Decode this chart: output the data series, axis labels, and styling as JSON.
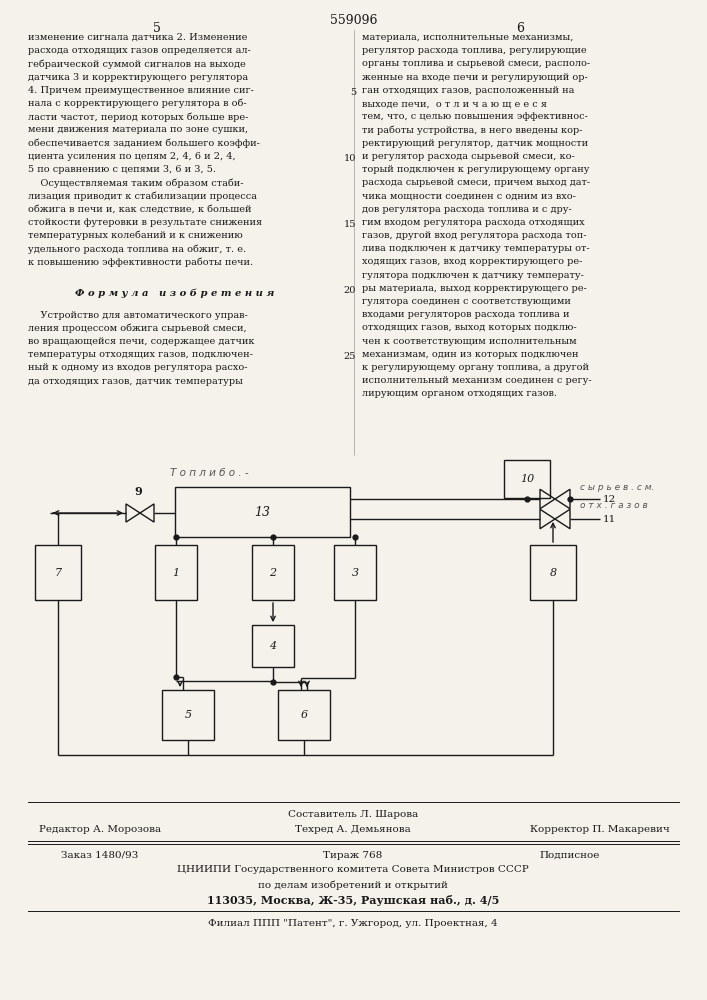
{
  "page_number": "559096",
  "col_left": "5",
  "col_right": "6",
  "bg_color": "#f5f2ec",
  "text_color": "#1a1a1a",
  "left_text": [
    "изменение сигнала датчика 2. Изменение",
    "расхода отходящих газов определяется ал-",
    "гебраической суммой сигналов на выходе",
    "датчика 3 и корректирующего регулятора",
    "4. Причем преимущественное влияние сиг-",
    "нала с корректирующего регулятора в об-",
    "ласти частот, период которых больше вре-",
    "мени движения материала по зоне сушки,",
    "обеспечивается заданием большего коэффи-",
    "циента усиления по цепям 2, 4, 6 и 2, 4,",
    "5 по сравнению с цепями 3, 6 и 3, 5.",
    "    Осуществляемая таким образом стаби-",
    "лизация приводит к стабилизации процесса",
    "обжига в печи и, как следствие, к большей",
    "стойкости футеровки в результате снижения",
    "температурных колебаний и к снижению",
    "удельного расхода топлива на обжиг, т. е.",
    "к повышению эффективности работы печи."
  ],
  "formula_heading": "Ф о р м у л а   и з о б р е т е н и я",
  "formula_text": [
    "    Устройство для автоматического управ-",
    "ления процессом обжига сырьевой смеси,",
    "во вращающейся печи, содержащее датчик",
    "температуры отходящих газов, подключен-",
    "ный к одному из входов регулятора расхо-",
    "да отходящих газов, датчик температуры"
  ],
  "right_text": [
    "материала, исполнительные механизмы,",
    "регулятор расхода топлива, регулирующие",
    "органы топлива и сырьевой смеси, располо-",
    "женные на входе печи и регулирующий ор-",
    "ган отходящих газов, расположенный на",
    "выходе печи,  о т л и ч а ю щ е е с я",
    "тем, что, с целью повышения эффективнос-",
    "ти работы устройства, в него введены кор-",
    "ректирующий регулятор, датчик мощности",
    "и регулятор расхода сырьевой смеси, ко-",
    "торый подключен к регулирующему органу",
    "расхода сырьевой смеси, причем выход дат-",
    "чика мощности соединен с одним из вхо-",
    "дов регулятора расхода топлива и с дру-",
    "гим входом регулятора расхода отходящих",
    "газов, другой вход регулятора расхода топ-",
    "лива подключен к датчику температуры от-",
    "ходящих газов, вход корректирующего ре-",
    "гулятора подключен к датчику температу-",
    "ры материала, выход корректирующего ре-",
    "гулятора соединен с соответствующими",
    "входами регуляторов расхода топлива и",
    "отходящих газов, выход которых подклю-",
    "чен к соответствующим исполнительным",
    "механизмам, один из которых подключен",
    "к регулирующему органу топлива, а другой",
    "исполнительный механизм соединен с регу-",
    "лирующим органом отходящих газов."
  ],
  "line_numbers": [
    5,
    10,
    15,
    20,
    25
  ],
  "line_number_rows": [
    4,
    9,
    14,
    19,
    24
  ],
  "footer_composer": "Составитель Л. Шарова",
  "footer_editor": "Редактор А. Морозова",
  "footer_techred": "Техред А. Демьянова",
  "footer_corrector": "Корректор П. Макаревич",
  "footer_order": "Заказ 1480/93",
  "footer_tirazh": "Тираж 768",
  "footer_podpisnoe": "Подписное",
  "footer_org": "ЦНИИПИ Государственного комитета Совета Министров СССР",
  "footer_org2": "по делам изобретений и открытий",
  "footer_addr": "113035, Москва, Ж-35, Раушская наб., д. 4/5",
  "footer_filial": "Филиал ППП \"Патент\", г. Ужгород, ул. Проектная, 4",
  "handwritten": "Т о п л и б о . -",
  "label_12": "с ы р ь е в . с м.",
  "label_11": "о т х . г а з о в"
}
